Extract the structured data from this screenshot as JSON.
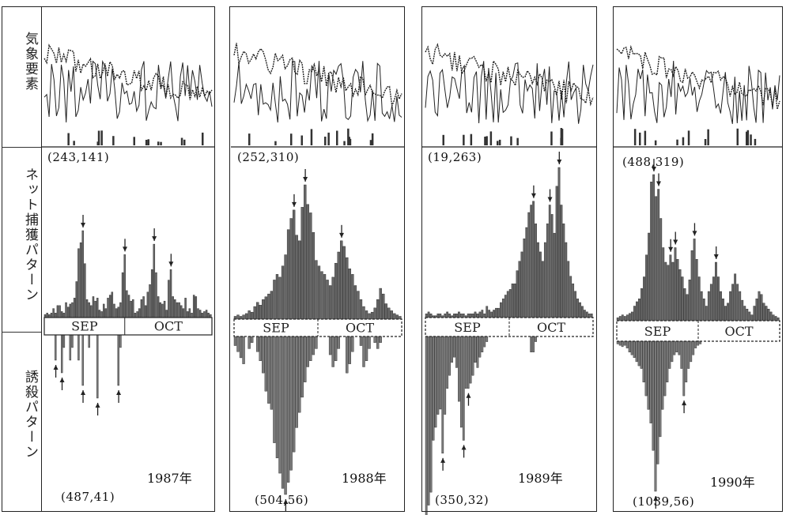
{
  "row_labels": {
    "weather": "気象要素",
    "net_catch": "ネット捕獲パターン",
    "induced_kill": "誘殺パターン"
  },
  "months": [
    "SEP",
    "OCT"
  ],
  "colors": {
    "ink": "#222222",
    "bar": "#333333",
    "background": "#ffffff"
  },
  "chart_data": [
    {
      "type": "bar",
      "year_label": "1987年",
      "net_max_label": "(243,141)",
      "kill_max_label": "(487,41)",
      "net_catch": [
        2,
        3,
        2,
        3,
        6,
        3,
        8,
        8,
        4,
        3,
        10,
        7,
        9,
        10,
        13,
        24,
        46,
        50,
        58,
        36,
        12,
        10,
        8,
        14,
        11,
        13,
        5,
        4,
        9,
        6,
        13,
        15,
        17,
        9,
        6,
        7,
        10,
        30,
        42,
        18,
        15,
        11,
        12,
        3,
        4,
        6,
        12,
        14,
        8,
        17,
        22,
        32,
        49,
        30,
        14,
        10,
        9,
        11,
        5,
        25,
        32,
        14,
        12,
        10,
        10,
        8,
        6,
        13,
        4,
        6,
        3,
        15,
        14,
        6,
        5,
        3,
        4,
        5,
        3,
        2
      ],
      "induced_kill": [
        0,
        0,
        0,
        0,
        0,
        2,
        0,
        0,
        3,
        1,
        0,
        0,
        2,
        1,
        0,
        0,
        2,
        0,
        4,
        0,
        0,
        1,
        0,
        0,
        0,
        5,
        0,
        0,
        0,
        0,
        0,
        0,
        0,
        0,
        0,
        4,
        1,
        0,
        0,
        0,
        0,
        0,
        0,
        0,
        0,
        0,
        0,
        0,
        0,
        0,
        0,
        0,
        0,
        0,
        0,
        0,
        0,
        0,
        0,
        0,
        0,
        0,
        0,
        0,
        0,
        0,
        0,
        0,
        0,
        0,
        0,
        0,
        0,
        0,
        0,
        0,
        0,
        0,
        0,
        0
      ]
    },
    {
      "type": "bar",
      "year_label": "1988年",
      "net_max_label": "(252,310)",
      "kill_max_label": "(504,56)",
      "net_catch": [
        2,
        3,
        2,
        3,
        4,
        6,
        5,
        9,
        12,
        10,
        14,
        16,
        18,
        20,
        28,
        32,
        30,
        38,
        46,
        64,
        72,
        78,
        60,
        56,
        80,
        96,
        82,
        76,
        62,
        42,
        38,
        34,
        32,
        28,
        24,
        30,
        40,
        48,
        56,
        52,
        44,
        36,
        32,
        24,
        20,
        14,
        9,
        6,
        4,
        5,
        8,
        14,
        22,
        18,
        11,
        8,
        6,
        4,
        3,
        2
      ],
      "induced_kill": [
        3,
        5,
        7,
        9,
        0,
        4,
        2,
        0,
        5,
        8,
        12,
        18,
        22,
        24,
        35,
        40,
        45,
        50,
        52,
        48,
        44,
        38,
        30,
        25,
        20,
        15,
        10,
        8,
        6,
        4,
        0,
        0,
        0,
        0,
        6,
        10,
        8,
        4,
        0,
        0,
        12,
        9,
        5,
        0,
        0,
        3,
        10,
        8,
        4,
        0,
        2,
        4,
        2,
        0,
        0,
        0,
        0,
        0,
        0,
        0
      ]
    },
    {
      "type": "bar",
      "year_label": "1989年",
      "net_max_label": "(19,263)",
      "kill_max_label": "(350,32)",
      "net_catch": [
        2,
        3,
        2,
        1,
        1,
        2,
        2,
        1,
        2,
        3,
        2,
        1,
        2,
        2,
        3,
        2,
        2,
        1,
        2,
        2,
        2,
        3,
        2,
        3,
        4,
        2,
        6,
        4,
        3,
        4,
        5,
        5,
        8,
        10,
        12,
        14,
        15,
        18,
        18,
        25,
        30,
        35,
        42,
        48,
        56,
        60,
        62,
        50,
        40,
        35,
        30,
        40,
        50,
        60,
        55,
        45,
        70,
        80,
        60,
        50,
        40,
        30,
        22,
        18,
        14,
        10,
        8,
        6,
        4,
        3,
        2,
        2
      ],
      "induced_kill": [
        70,
        65,
        60,
        40,
        35,
        30,
        28,
        45,
        30,
        20,
        15,
        10,
        8,
        12,
        25,
        35,
        40,
        20,
        20,
        18,
        15,
        10,
        12,
        8,
        6,
        4,
        2,
        0,
        0,
        0,
        0,
        0,
        0,
        0,
        0,
        0,
        0,
        0,
        0,
        0,
        0,
        0,
        0,
        0,
        0,
        6,
        6,
        2,
        0,
        0,
        0,
        0,
        0,
        0,
        0,
        0,
        0,
        0,
        0,
        0,
        0,
        0,
        0,
        0,
        0,
        0,
        0,
        0,
        0,
        0,
        0,
        0
      ]
    },
    {
      "type": "bar",
      "year_label": "1990年",
      "net_max_label": "(488,319)",
      "kill_max_label": "(1039,56)",
      "net_catch": [
        2,
        3,
        4,
        3,
        4,
        5,
        6,
        10,
        13,
        15,
        22,
        30,
        45,
        60,
        95,
        100,
        85,
        90,
        70,
        50,
        40,
        38,
        45,
        40,
        50,
        42,
        35,
        30,
        22,
        18,
        28,
        48,
        56,
        42,
        30,
        20,
        15,
        10,
        20,
        25,
        30,
        40,
        30,
        20,
        15,
        10,
        12,
        20,
        25,
        32,
        25,
        20,
        14,
        10,
        8,
        6,
        4,
        10,
        15,
        20,
        18,
        12,
        10,
        8,
        6,
        4,
        3,
        2
      ],
      "induced_kill": [
        2,
        3,
        4,
        3,
        5,
        8,
        10,
        12,
        15,
        18,
        20,
        30,
        40,
        50,
        60,
        80,
        110,
        90,
        70,
        50,
        40,
        30,
        20,
        15,
        10,
        8,
        10,
        20,
        40,
        30,
        20,
        15,
        10,
        5,
        3,
        2,
        0,
        0,
        0,
        0,
        0,
        0,
        0,
        0,
        0,
        0,
        0,
        0,
        0,
        0,
        0,
        0,
        0,
        0,
        0,
        0,
        0,
        0,
        0,
        0,
        0,
        0,
        0,
        0,
        0,
        0,
        0,
        0,
        0
      ]
    }
  ]
}
